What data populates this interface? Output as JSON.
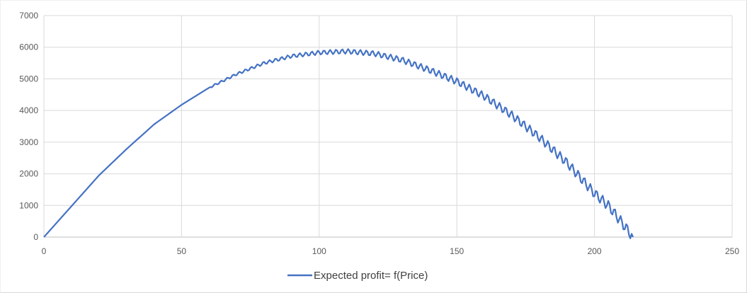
{
  "chart_data": {
    "type": "line",
    "title": "",
    "xlabel": "",
    "ylabel": "",
    "xlim": [
      0,
      250
    ],
    "ylim": [
      0,
      7000
    ],
    "x_ticks": [
      0,
      50,
      100,
      150,
      200,
      250
    ],
    "y_ticks": [
      0,
      1000,
      2000,
      3000,
      4000,
      5000,
      6000,
      7000
    ],
    "x_tick_labels": [
      "0",
      "50",
      "100",
      "150",
      "200",
      "250"
    ],
    "y_tick_labels": [
      "0",
      "1000",
      "2000",
      "3000",
      "4000",
      "5000",
      "6000",
      "7000"
    ],
    "grid": "vertical and horizontal major gridlines",
    "legend_position": "bottom-center",
    "series": [
      {
        "name": "Expected profit= f(Price)",
        "color": "#4472c4",
        "x": [
          0,
          20,
          30,
          40,
          50,
          60,
          70,
          80,
          90,
          100,
          110,
          120,
          130,
          140,
          150,
          160,
          170,
          180,
          190,
          200,
          205,
          210,
          214
        ],
        "y": [
          0,
          1950,
          2780,
          3560,
          4180,
          4720,
          5150,
          5500,
          5720,
          5830,
          5870,
          5800,
          5600,
          5280,
          4920,
          4450,
          3850,
          3150,
          2350,
          1380,
          1000,
          450,
          0
        ]
      }
    ]
  }
}
